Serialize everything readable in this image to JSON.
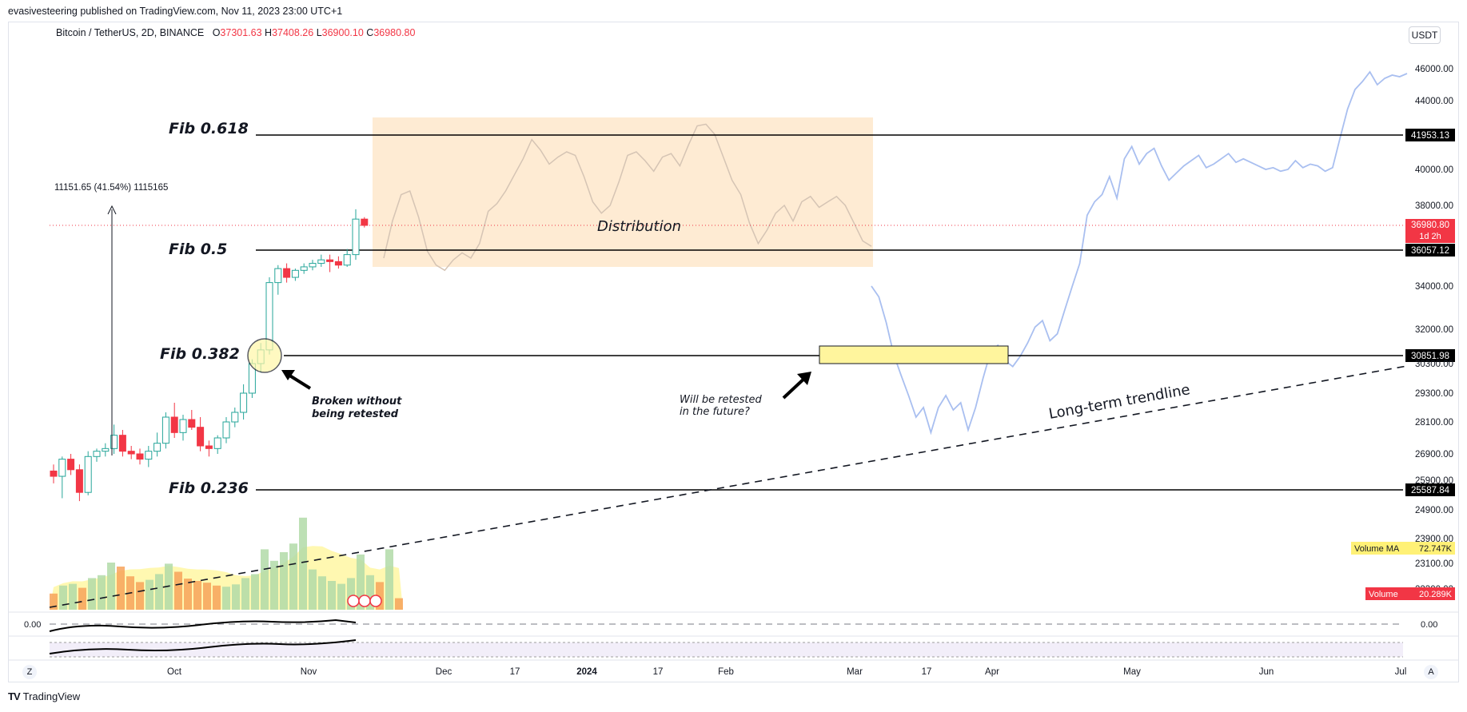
{
  "header": {
    "published": "evasivesteering published on TradingView.com, Nov 11, 2023 23:00 UTC+1",
    "symbol": "Bitcoin / TetherUS, 2D, BINANCE",
    "ohlc": {
      "o_label": "O",
      "o": "37301.63",
      "h_label": "H",
      "h": "37408.26",
      "l_label": "L",
      "l": "36900.10",
      "c_label": "C",
      "c": "36980.80"
    },
    "currency": "USDT"
  },
  "footer": {
    "brand": "TradingView",
    "logo": "TV"
  },
  "axis_buttons": {
    "left": "Z",
    "right": "A"
  },
  "chart_data": {
    "type": "line",
    "price_axis_ticks": [
      "46000.00",
      "44000.00",
      "40000.00",
      "38000.00",
      "34000.00",
      "32000.00",
      "30300.00",
      "29300.00",
      "28100.00",
      "26900.00",
      "25900.00",
      "24900.00",
      "23900.00",
      "23100.00",
      "22300.00"
    ],
    "time_axis_ticks": [
      "Oct",
      "Nov",
      "Dec",
      "17",
      "2024",
      "17",
      "Feb",
      "Mar",
      "17",
      "Apr",
      "May",
      "Jun",
      "Jul"
    ],
    "time_axis_bold": [
      "2024"
    ],
    "fib_levels": [
      {
        "label": "Fib 0.618",
        "value": 41953.13,
        "tag": "41953.13"
      },
      {
        "label": "Fib 0.5",
        "value": 36057.12,
        "tag": "36057.12"
      },
      {
        "label": "Fib 0.382",
        "value": 30851.98,
        "tag": "30851.98"
      },
      {
        "label": "Fib 0.236",
        "value": 25587.84,
        "tag": "25587.84"
      }
    ],
    "current_price": {
      "value": 36980.8,
      "tag": "36980.80",
      "countdown": "1d 2h"
    },
    "measure_label": "11151.65 (41.54%) 1115165",
    "annotations": {
      "distribution": "Distribution",
      "broken_line1": "Broken without",
      "broken_line2": "being retested",
      "retest_line1": "Will be retested",
      "retest_line2": "in the future?",
      "trendline": "Long-term trendline"
    },
    "volume_ma": {
      "label": "Volume MA",
      "value": "72.747K"
    },
    "volume": {
      "label": "Volume",
      "value": "20.289K"
    },
    "oscillator_zero": "0.00",
    "candles": [
      {
        "o": 26250,
        "h": 26500,
        "l": 25800,
        "c": 26050
      },
      {
        "o": 26050,
        "h": 26800,
        "l": 25300,
        "c": 26700
      },
      {
        "o": 26700,
        "h": 26900,
        "l": 26100,
        "c": 26300
      },
      {
        "o": 26300,
        "h": 26500,
        "l": 25200,
        "c": 25500
      },
      {
        "o": 25500,
        "h": 27000,
        "l": 25400,
        "c": 26800
      },
      {
        "o": 26800,
        "h": 27100,
        "l": 26600,
        "c": 27000
      },
      {
        "o": 27000,
        "h": 27300,
        "l": 26800,
        "c": 27100
      },
      {
        "o": 27100,
        "h": 28000,
        "l": 26900,
        "c": 27600
      },
      {
        "o": 27600,
        "h": 27800,
        "l": 26800,
        "c": 27000
      },
      {
        "o": 27000,
        "h": 27200,
        "l": 26700,
        "c": 26900
      },
      {
        "o": 26900,
        "h": 27100,
        "l": 26500,
        "c": 26700
      },
      {
        "o": 26700,
        "h": 27200,
        "l": 26400,
        "c": 27000
      },
      {
        "o": 27000,
        "h": 27700,
        "l": 26800,
        "c": 27300
      },
      {
        "o": 27300,
        "h": 28500,
        "l": 27100,
        "c": 28300
      },
      {
        "o": 28300,
        "h": 28900,
        "l": 27500,
        "c": 27700
      },
      {
        "o": 27700,
        "h": 28400,
        "l": 27400,
        "c": 28200
      },
      {
        "o": 28200,
        "h": 28600,
        "l": 27800,
        "c": 27900
      },
      {
        "o": 27900,
        "h": 28300,
        "l": 27000,
        "c": 27200
      },
      {
        "o": 27200,
        "h": 27400,
        "l": 26800,
        "c": 27100
      },
      {
        "o": 27100,
        "h": 27600,
        "l": 26900,
        "c": 27500
      },
      {
        "o": 27500,
        "h": 28300,
        "l": 27300,
        "c": 28100
      },
      {
        "o": 28100,
        "h": 28700,
        "l": 27900,
        "c": 28500
      },
      {
        "o": 28500,
        "h": 29600,
        "l": 28200,
        "c": 29300
      },
      {
        "o": 29300,
        "h": 30600,
        "l": 29100,
        "c": 30300
      },
      {
        "o": 30300,
        "h": 31400,
        "l": 30000,
        "c": 31100
      },
      {
        "o": 31100,
        "h": 34500,
        "l": 30900,
        "c": 34200
      },
      {
        "o": 34200,
        "h": 35200,
        "l": 33600,
        "c": 35000
      },
      {
        "o": 35000,
        "h": 35300,
        "l": 34200,
        "c": 34500
      },
      {
        "o": 34500,
        "h": 35000,
        "l": 34300,
        "c": 34900
      },
      {
        "o": 34900,
        "h": 35300,
        "l": 34700,
        "c": 35100
      },
      {
        "o": 35100,
        "h": 35500,
        "l": 34900,
        "c": 35300
      },
      {
        "o": 35300,
        "h": 35800,
        "l": 35100,
        "c": 35500
      },
      {
        "o": 35500,
        "h": 35800,
        "l": 34800,
        "c": 35400
      },
      {
        "o": 35400,
        "h": 35700,
        "l": 35000,
        "c": 35200
      },
      {
        "o": 35200,
        "h": 36100,
        "l": 35100,
        "c": 35800
      },
      {
        "o": 35800,
        "h": 37800,
        "l": 35500,
        "c": 37300
      },
      {
        "o": 37300,
        "h": 37400,
        "l": 36900,
        "c": 36980
      }
    ],
    "projection_orange": [
      35600,
      37200,
      38600,
      38800,
      37400,
      36000,
      35200,
      34900,
      35500,
      35900,
      35600,
      36300,
      37700,
      38100,
      38800,
      39700,
      40600,
      41700,
      41100,
      40300,
      40700,
      41000,
      40800,
      39600,
      38200,
      37600,
      38000,
      39300,
      40800,
      41000,
      40500,
      39900,
      40700,
      40900,
      40200,
      41400,
      42500,
      42600,
      42000,
      40700,
      39400,
      38600,
      37100,
      36300,
      36800,
      37600,
      38000,
      37200,
      38200,
      38500,
      37900,
      38200,
      38500,
      38000,
      37100,
      36400,
      36200
    ],
    "projection_blue": [
      34000,
      33500,
      32300,
      30900,
      29900,
      29200,
      28300,
      28700,
      27700,
      28700,
      29200,
      28600,
      28900,
      27800,
      28700,
      29800,
      31000,
      31300,
      30500,
      30200,
      30800,
      31400,
      32100,
      32400,
      31500,
      31800,
      32900,
      34000,
      35300,
      37500,
      38200,
      38600,
      39600,
      38400,
      40600,
      41300,
      40300,
      40900,
      41200,
      40200,
      39400,
      39800,
      40200,
      40500,
      40800,
      40100,
      40300,
      40600,
      40900,
      40400,
      40600,
      40400,
      40200,
      40000,
      40100,
      39900,
      40000,
      40500,
      40100,
      40300,
      40200,
      39900,
      40100,
      41800,
      43500,
      44700,
      45200,
      45800,
      45000,
      45400,
      45600,
      45500,
      45700
    ],
    "volume_bars": [
      {
        "v": 28,
        "up": false
      },
      {
        "v": 42,
        "up": true
      },
      {
        "v": 45,
        "up": true
      },
      {
        "v": 38,
        "up": false
      },
      {
        "v": 55,
        "up": true
      },
      {
        "v": 60,
        "up": true
      },
      {
        "v": 82,
        "up": true
      },
      {
        "v": 75,
        "up": false
      },
      {
        "v": 58,
        "up": false
      },
      {
        "v": 48,
        "up": false
      },
      {
        "v": 52,
        "up": true
      },
      {
        "v": 62,
        "up": true
      },
      {
        "v": 80,
        "up": true
      },
      {
        "v": 66,
        "up": false
      },
      {
        "v": 54,
        "up": false
      },
      {
        "v": 50,
        "up": false
      },
      {
        "v": 47,
        "up": false
      },
      {
        "v": 42,
        "up": false
      },
      {
        "v": 40,
        "up": true
      },
      {
        "v": 44,
        "up": true
      },
      {
        "v": 55,
        "up": true
      },
      {
        "v": 62,
        "up": true
      },
      {
        "v": 105,
        "up": true
      },
      {
        "v": 85,
        "up": true
      },
      {
        "v": 100,
        "up": true
      },
      {
        "v": 115,
        "up": true
      },
      {
        "v": 160,
        "up": true
      },
      {
        "v": 70,
        "up": true
      },
      {
        "v": 58,
        "up": true
      },
      {
        "v": 50,
        "up": true
      },
      {
        "v": 45,
        "up": true
      },
      {
        "v": 55,
        "up": true
      },
      {
        "v": 96,
        "up": true
      },
      {
        "v": 60,
        "up": true
      },
      {
        "v": 48,
        "up": false
      },
      {
        "v": 105,
        "up": true
      },
      {
        "v": 20,
        "up": false
      }
    ],
    "ylim": [
      22300,
      46500
    ]
  }
}
